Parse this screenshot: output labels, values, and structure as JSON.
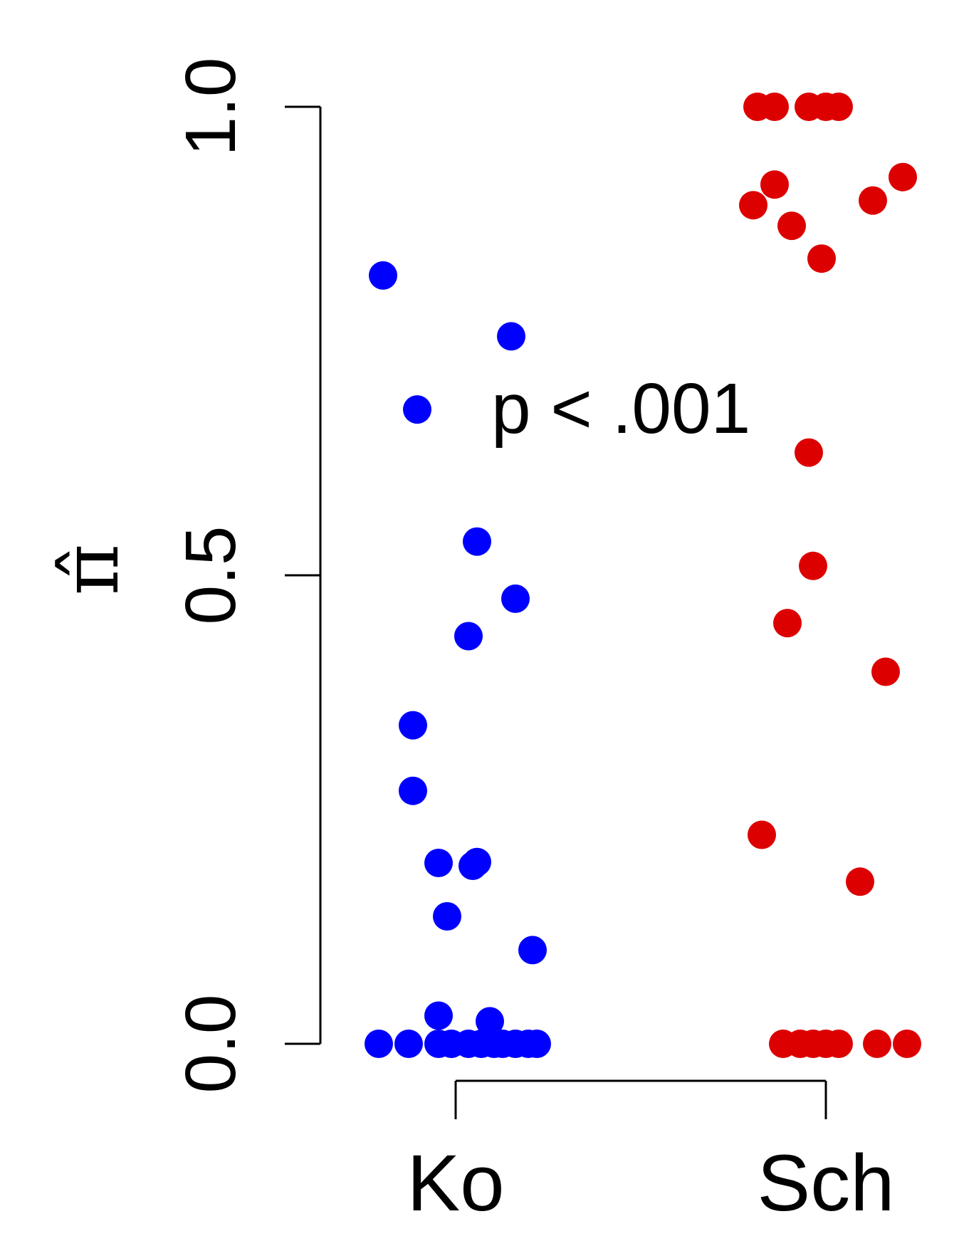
{
  "chart_data": {
    "type": "scatter",
    "title": "",
    "ylabel": "π̂",
    "xlabel": "",
    "ylim": [
      0,
      1
    ],
    "yticks": [
      "0.0",
      "0.5",
      "1.0"
    ],
    "categories": [
      "Ko",
      "Sch"
    ],
    "annotation": "p < .001",
    "grid": false,
    "series": [
      {
        "category": "Ko",
        "color": "#0000ff",
        "points": [
          {
            "jitter": -0.17,
            "y": 0.82
          },
          {
            "jitter": 0.13,
            "y": 0.755
          },
          {
            "jitter": -0.09,
            "y": 0.677
          },
          {
            "jitter": 0.05,
            "y": 0.536
          },
          {
            "jitter": 0.14,
            "y": 0.475
          },
          {
            "jitter": 0.03,
            "y": 0.435
          },
          {
            "jitter": -0.1,
            "y": 0.34
          },
          {
            "jitter": -0.1,
            "y": 0.27
          },
          {
            "jitter": -0.04,
            "y": 0.193
          },
          {
            "jitter": 0.04,
            "y": 0.19
          },
          {
            "jitter": 0.05,
            "y": 0.194
          },
          {
            "jitter": -0.02,
            "y": 0.136
          },
          {
            "jitter": 0.18,
            "y": 0.1
          },
          {
            "jitter": -0.04,
            "y": 0.03
          },
          {
            "jitter": 0.08,
            "y": 0.024
          },
          {
            "jitter": -0.18,
            "y": 0.0
          },
          {
            "jitter": -0.11,
            "y": 0.0
          },
          {
            "jitter": -0.04,
            "y": 0.0
          },
          {
            "jitter": -0.01,
            "y": 0.0
          },
          {
            "jitter": 0.03,
            "y": 0.0
          },
          {
            "jitter": 0.06,
            "y": 0.0
          },
          {
            "jitter": 0.09,
            "y": 0.0
          },
          {
            "jitter": 0.11,
            "y": 0.0
          },
          {
            "jitter": 0.14,
            "y": 0.0
          },
          {
            "jitter": 0.17,
            "y": 0.0
          },
          {
            "jitter": 0.19,
            "y": 0.0
          }
        ]
      },
      {
        "category": "Sch",
        "color": "#dd0000",
        "points": [
          {
            "jitter": -0.16,
            "y": 1.0
          },
          {
            "jitter": -0.12,
            "y": 1.0
          },
          {
            "jitter": -0.04,
            "y": 1.0
          },
          {
            "jitter": 0.0,
            "y": 1.0
          },
          {
            "jitter": 0.03,
            "y": 1.0
          },
          {
            "jitter": -0.12,
            "y": 0.917
          },
          {
            "jitter": -0.17,
            "y": 0.895
          },
          {
            "jitter": -0.08,
            "y": 0.873
          },
          {
            "jitter": 0.18,
            "y": 0.925
          },
          {
            "jitter": 0.11,
            "y": 0.9
          },
          {
            "jitter": -0.01,
            "y": 0.838
          },
          {
            "jitter": -0.04,
            "y": 0.631
          },
          {
            "jitter": -0.03,
            "y": 0.51
          },
          {
            "jitter": -0.09,
            "y": 0.449
          },
          {
            "jitter": 0.14,
            "y": 0.397
          },
          {
            "jitter": -0.15,
            "y": 0.223
          },
          {
            "jitter": 0.08,
            "y": 0.173
          },
          {
            "jitter": -0.1,
            "y": 0.0
          },
          {
            "jitter": -0.06,
            "y": 0.0
          },
          {
            "jitter": -0.03,
            "y": 0.0
          },
          {
            "jitter": 0.0,
            "y": 0.0
          },
          {
            "jitter": 0.03,
            "y": 0.0
          },
          {
            "jitter": 0.12,
            "y": 0.0
          },
          {
            "jitter": 0.19,
            "y": 0.0
          }
        ]
      }
    ]
  }
}
